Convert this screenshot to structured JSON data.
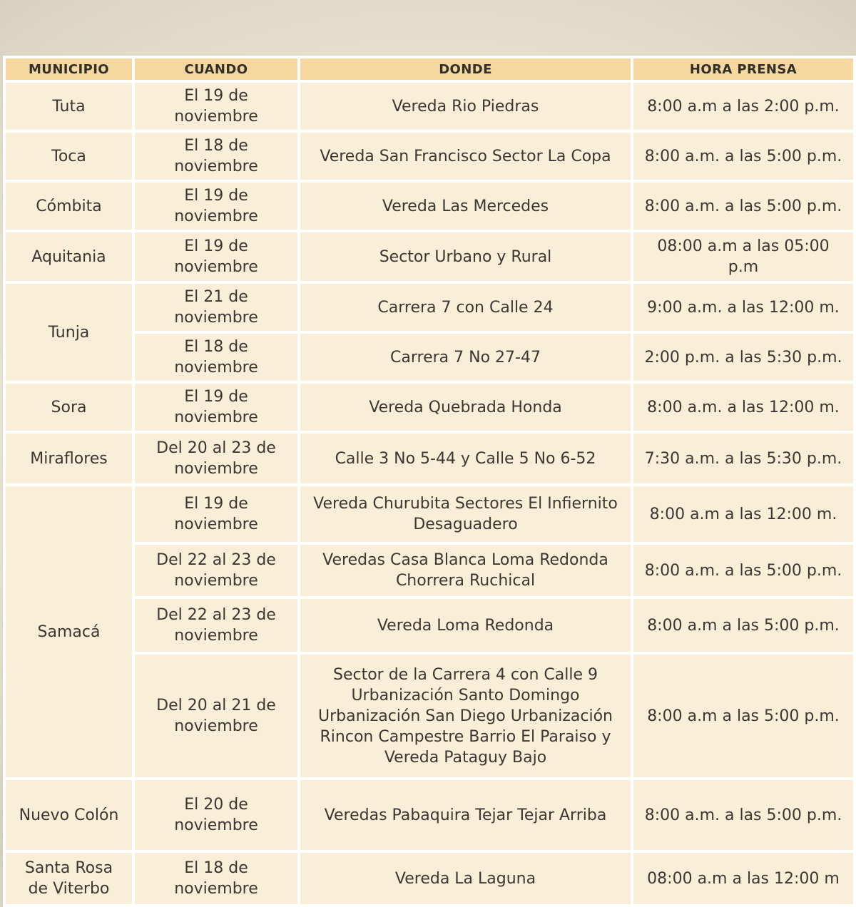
{
  "chart_data": {
    "type": "table",
    "headers": [
      "MUNICIPIO",
      "CUANDO",
      "DONDE",
      "HORA PRENSA"
    ],
    "groups": [
      {
        "municipio": "Tuta",
        "rows": [
          {
            "cuando": "El 19 de noviembre",
            "donde": "Vereda Rio Piedras",
            "hora": "8:00 a.m a las 2:00 p.m."
          }
        ]
      },
      {
        "municipio": "Toca",
        "rows": [
          {
            "cuando": "El 18 de noviembre",
            "donde": "Vereda San Francisco Sector La Copa",
            "hora": "8:00 a.m. a las 5:00 p.m."
          }
        ]
      },
      {
        "municipio": "Cómbita",
        "rows": [
          {
            "cuando": "El 19 de noviembre",
            "donde": "Vereda Las Mercedes",
            "hora": "8:00 a.m. a las 5:00 p.m."
          }
        ]
      },
      {
        "municipio": "Aquitania",
        "rows": [
          {
            "cuando": "El 19 de noviembre",
            "donde": "Sector Urbano y Rural",
            "hora": "08:00 a.m a las 05:00 p.m"
          }
        ]
      },
      {
        "municipio": "Tunja",
        "rows": [
          {
            "cuando": "El 21 de noviembre",
            "donde": "Carrera 7 con Calle 24",
            "hora": "9:00 a.m. a las 12:00 m."
          },
          {
            "cuando": "El 18 de noviembre",
            "donde": "Carrera 7 No 27-47",
            "hora": "2:00 p.m. a las 5:30 p.m."
          }
        ]
      },
      {
        "municipio": "Sora",
        "rows": [
          {
            "cuando": "El 19 de noviembre",
            "donde": "Vereda Quebrada Honda",
            "hora": "8:00 a.m. a las 12:00 m."
          }
        ]
      },
      {
        "municipio": "Miraflores",
        "rows": [
          {
            "cuando": "Del 20 al 23 de noviembre",
            "donde": "Calle 3 No 5-44 y Calle 5 No 6-52",
            "hora": "7:30 a.m. a las 5:30 p.m."
          }
        ]
      },
      {
        "municipio": "Samacá",
        "rows": [
          {
            "cuando": "El 19 de noviembre",
            "donde": "Vereda Churubita Sectores El Infiernito Desaguadero",
            "hora": "8:00 a.m a las 12:00 m."
          },
          {
            "cuando": "Del 22 al 23 de noviembre",
            "donde": "Veredas Casa Blanca Loma Redonda Chorrera Ruchical",
            "hora": "8:00 a.m. a las 5:00 p.m."
          },
          {
            "cuando": "Del 22 al 23 de noviembre",
            "donde": "Vereda Loma Redonda",
            "hora": "8:00 a.m a las 5:00 p.m."
          },
          {
            "cuando": "Del 20 al 21 de noviembre",
            "donde": "Sector de la Carrera 4 con Calle 9 Urbanización Santo Domingo Urbanización San Diego Urbanización Rincon Campestre Barrio El Paraiso y Vereda Pataguy Bajo",
            "hora": "8:00 a.m a las 5:00 p.m."
          }
        ]
      },
      {
        "municipio": "Nuevo Colón",
        "rows": [
          {
            "cuando": "El 20 de noviembre",
            "donde": "Veredas Pabaquira Tejar Tejar Arriba",
            "hora": "8:00 a.m. a las 5:00 p.m."
          }
        ]
      },
      {
        "municipio": "Santa Rosa de Viterbo",
        "rows": [
          {
            "cuando": "El 18 de noviembre",
            "donde": "Vereda La Laguna",
            "hora": "08:00 a.m a las 12:00 m"
          }
        ]
      }
    ],
    "colors": {
      "header_bg": "#f4d8a0",
      "cell_bg": "#f9efd9",
      "grid": "#ffffff",
      "text": "#3c3831",
      "page_bg_center": "#f1ead8",
      "page_bg_edge": "#ccc5b4"
    }
  }
}
